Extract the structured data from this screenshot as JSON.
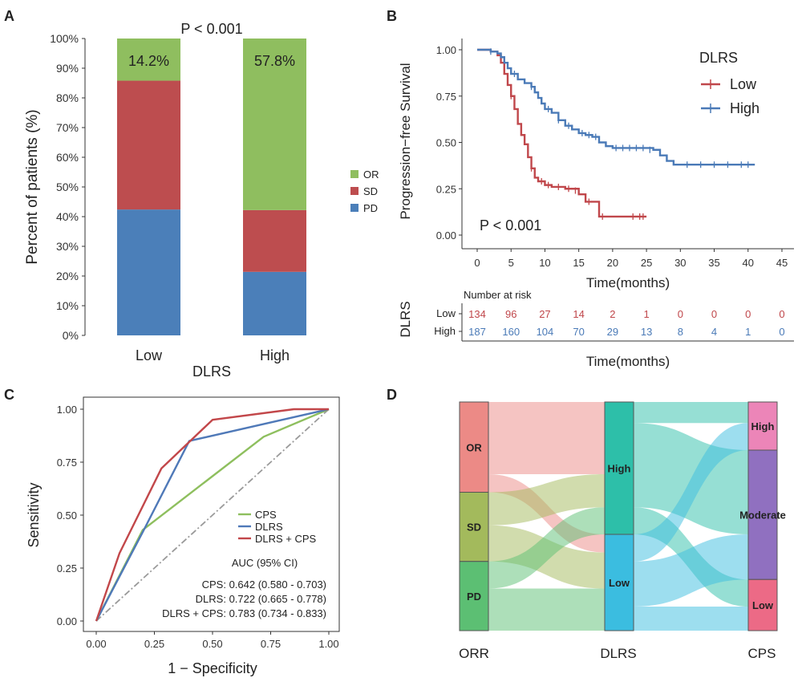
{
  "panel_letters": [
    "A",
    "B",
    "C",
    "D"
  ],
  "colors": {
    "or": "#8fbe5f",
    "sd": "#bd4d4f",
    "pd": "#4b7fb9",
    "km_low": "#c0474b",
    "km_high": "#4a7ab7",
    "roc_cps": "#8ebf5e",
    "roc_dlrs": "#4f79b8",
    "roc_combo": "#c2474a",
    "alluvial": {
      "OR": "#ec8a86",
      "SD": "#a3ba5c",
      "PD": "#5cbf73",
      "High": "#2dbfa9",
      "Low": "#3bbde0",
      "CPS_High": "#ec85b8",
      "CPS_Moderate": "#9070c0",
      "CPS_Low": "#ec6a86"
    }
  },
  "chart_data": [
    {
      "panel": "A",
      "type": "bar",
      "stacked": true,
      "categories": [
        "Low",
        "High"
      ],
      "series": [
        {
          "name": "PD",
          "values": [
            42.4,
            21.4
          ]
        },
        {
          "name": "SD",
          "values": [
            43.4,
            20.8
          ]
        },
        {
          "name": "OR",
          "values": [
            14.2,
            57.8
          ]
        }
      ],
      "top_labels": [
        "14.2%",
        "57.8%"
      ],
      "annotation": "P < 0.001",
      "xlabel": "DLRS",
      "ylabel": "Percent of patients (%)",
      "yticks": [
        "0%",
        "10%",
        "20%",
        "30%",
        "40%",
        "50%",
        "60%",
        "70%",
        "80%",
        "90%",
        "100%"
      ],
      "ylim": [
        0,
        100
      ],
      "legend_order": [
        "OR",
        "SD",
        "PD"
      ],
      "legend_position": "right"
    },
    {
      "panel": "B",
      "type": "line",
      "step": true,
      "ylabel": "Progression−free Survival",
      "xlabel": "Time(months)",
      "xticks": [
        "0",
        "5",
        "10",
        "15",
        "20",
        "25",
        "30",
        "35",
        "40",
        "45"
      ],
      "yticks": [
        "0.00",
        "0.25",
        "0.50",
        "0.75",
        "1.00"
      ],
      "xlim": [
        0,
        45
      ],
      "ylim": [
        0,
        1
      ],
      "legend_title": "DLRS",
      "legend_position": "top-right",
      "annotation": "P < 0.001",
      "series": [
        {
          "name": "Low",
          "steps": [
            [
              0,
              1.0
            ],
            [
              2,
              0.99
            ],
            [
              3,
              0.97
            ],
            [
              3.5,
              0.93
            ],
            [
              4,
              0.87
            ],
            [
              4.5,
              0.81
            ],
            [
              5,
              0.75
            ],
            [
              5.5,
              0.68
            ],
            [
              6,
              0.6
            ],
            [
              6.5,
              0.54
            ],
            [
              7,
              0.49
            ],
            [
              7.5,
              0.42
            ],
            [
              8,
              0.36
            ],
            [
              8.5,
              0.31
            ],
            [
              9,
              0.29
            ],
            [
              10,
              0.27
            ],
            [
              11,
              0.26
            ],
            [
              13,
              0.25
            ],
            [
              15,
              0.22
            ],
            [
              16,
              0.18
            ],
            [
              18,
              0.1
            ],
            [
              25,
              0.1
            ]
          ],
          "censors": [
            [
              4,
              0.91
            ],
            [
              5,
              0.75
            ],
            [
              8,
              0.36
            ],
            [
              9.5,
              0.29
            ],
            [
              10.5,
              0.27
            ],
            [
              12,
              0.26
            ],
            [
              13.5,
              0.25
            ],
            [
              14.5,
              0.24
            ],
            [
              16.5,
              0.18
            ],
            [
              18.5,
              0.1
            ],
            [
              23,
              0.1
            ],
            [
              24,
              0.1
            ],
            [
              24.5,
              0.1
            ]
          ]
        },
        {
          "name": "High",
          "steps": [
            [
              0,
              1.0
            ],
            [
              2,
              0.99
            ],
            [
              3,
              0.98
            ],
            [
              3.5,
              0.96
            ],
            [
              4,
              0.93
            ],
            [
              4.5,
              0.9
            ],
            [
              5,
              0.87
            ],
            [
              6,
              0.84
            ],
            [
              7,
              0.82
            ],
            [
              8,
              0.8
            ],
            [
              8.5,
              0.77
            ],
            [
              9,
              0.74
            ],
            [
              9.5,
              0.71
            ],
            [
              10,
              0.68
            ],
            [
              11,
              0.66
            ],
            [
              12,
              0.62
            ],
            [
              13,
              0.59
            ],
            [
              14,
              0.57
            ],
            [
              15,
              0.55
            ],
            [
              16,
              0.54
            ],
            [
              17,
              0.53
            ],
            [
              18,
              0.5
            ],
            [
              19,
              0.48
            ],
            [
              20,
              0.47
            ],
            [
              26,
              0.46
            ],
            [
              27,
              0.43
            ],
            [
              28,
              0.4
            ],
            [
              29,
              0.38
            ],
            [
              41,
              0.38
            ]
          ],
          "censors": [
            [
              2,
              0.99
            ],
            [
              5.5,
              0.87
            ],
            [
              8,
              0.8
            ],
            [
              10.5,
              0.68
            ],
            [
              12,
              0.62
            ],
            [
              13.5,
              0.59
            ],
            [
              15.5,
              0.55
            ],
            [
              16.5,
              0.54
            ],
            [
              17.5,
              0.53
            ],
            [
              20.5,
              0.47
            ],
            [
              21.5,
              0.47
            ],
            [
              22.5,
              0.47
            ],
            [
              23.5,
              0.47
            ],
            [
              24.5,
              0.47
            ],
            [
              25.5,
              0.46
            ],
            [
              31,
              0.38
            ],
            [
              33,
              0.38
            ],
            [
              35,
              0.38
            ],
            [
              37,
              0.38
            ],
            [
              39,
              0.38
            ],
            [
              40,
              0.38
            ]
          ]
        }
      ],
      "risk_table": {
        "title": "Number at risk",
        "ylabel": "DLRS",
        "xlabel": "Time(months)",
        "rows": [
          {
            "name": "Low",
            "values": [
              "134",
              "96",
              "27",
              "14",
              "2",
              "1",
              "0",
              "0",
              "0",
              "0"
            ]
          },
          {
            "name": "High",
            "values": [
              "187",
              "160",
              "104",
              "70",
              "29",
              "13",
              "8",
              "4",
              "1",
              "0"
            ]
          }
        ]
      }
    },
    {
      "panel": "C",
      "type": "line",
      "xlabel": "1 − Specificity",
      "ylabel": "Sensitivity",
      "xticks": [
        "0.00",
        "0.25",
        "0.50",
        "0.75",
        "1.00"
      ],
      "yticks": [
        "0.00",
        "0.25",
        "0.50",
        "0.75",
        "1.00"
      ],
      "xlim": [
        0,
        1
      ],
      "ylim": [
        0,
        1
      ],
      "legend_position": "center-right",
      "series": [
        {
          "name": "CPS",
          "points": [
            [
              0,
              0
            ],
            [
              0.2,
              0.43
            ],
            [
              0.72,
              0.87
            ],
            [
              1,
              1
            ]
          ]
        },
        {
          "name": "DLRS",
          "points": [
            [
              0,
              0
            ],
            [
              0.2,
              0.42
            ],
            [
              0.4,
              0.85
            ],
            [
              1,
              1
            ]
          ]
        },
        {
          "name": "DLRS + CPS",
          "points": [
            [
              0,
              0
            ],
            [
              0.1,
              0.32
            ],
            [
              0.28,
              0.72
            ],
            [
              0.5,
              0.95
            ],
            [
              0.85,
              1.0
            ],
            [
              1,
              1
            ]
          ]
        }
      ],
      "reference": [
        [
          0,
          0
        ],
        [
          1,
          1
        ]
      ],
      "auc_title": "AUC (95% CI)",
      "auc_lines": [
        "CPS: 0.642 (0.580 - 0.703)",
        "DLRS: 0.722 (0.665 - 0.778)",
        "DLRS + CPS: 0.783 (0.734 - 0.833)"
      ]
    },
    {
      "panel": "D",
      "type": "alluvial",
      "axes": [
        "ORR",
        "DLRS",
        "CPS"
      ],
      "nodes": {
        "ORR": [
          {
            "name": "OR",
            "value": 30
          },
          {
            "name": "SD",
            "value": 23
          },
          {
            "name": "PD",
            "value": 23
          }
        ],
        "DLRS": [
          {
            "name": "High",
            "value": 44
          },
          {
            "name": "Low",
            "value": 32
          }
        ],
        "CPS": [
          {
            "name": "High",
            "value": 16
          },
          {
            "name": "Moderate",
            "value": 43
          },
          {
            "name": "Low",
            "value": 17
          }
        ]
      },
      "flows_orr_dlrs": [
        {
          "from": "OR",
          "to": "High",
          "value": 24
        },
        {
          "from": "OR",
          "to": "Low",
          "value": 6
        },
        {
          "from": "SD",
          "to": "High",
          "value": 11
        },
        {
          "from": "SD",
          "to": "Low",
          "value": 12
        },
        {
          "from": "PD",
          "to": "High",
          "value": 9
        },
        {
          "from": "PD",
          "to": "Low",
          "value": 14
        }
      ],
      "flows_dlrs_cps": [
        {
          "from": "High",
          "to": "High",
          "value": 7
        },
        {
          "from": "High",
          "to": "Moderate",
          "value": 28
        },
        {
          "from": "High",
          "to": "Low",
          "value": 9
        },
        {
          "from": "Low",
          "to": "High",
          "value": 9
        },
        {
          "from": "Low",
          "to": "Moderate",
          "value": 15
        },
        {
          "from": "Low",
          "to": "Low",
          "value": 8
        }
      ]
    }
  ]
}
